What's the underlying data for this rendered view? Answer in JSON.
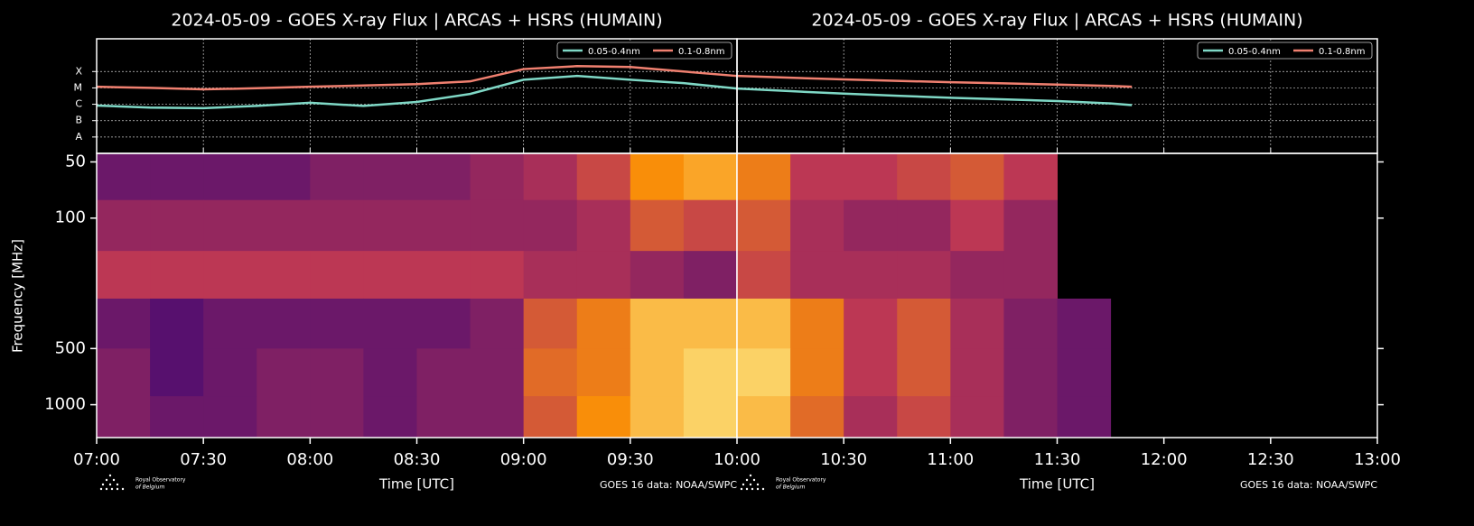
{
  "chart_data": [
    {
      "type": "heatmap",
      "title": "2024-05-09 - GOES X-ray Flux | ARCAS + HSRS (HUMAIN)",
      "xlabel": "Time [UTC]",
      "ylabel": "Frequency [MHz]",
      "credit": "GOES 16 data: NOAA/SWPC",
      "logo_text": [
        "Royal Observatory",
        "of Belgium"
      ],
      "xlim": [
        420,
        600
      ],
      "xticks": [
        {
          "value": 420,
          "label": "07:00"
        },
        {
          "value": 450,
          "label": "07:30"
        },
        {
          "value": 480,
          "label": "08:00"
        },
        {
          "value": 510,
          "label": "08:30"
        },
        {
          "value": 540,
          "label": "09:00"
        },
        {
          "value": 570,
          "label": "09:30"
        }
      ],
      "log_y": true,
      "ylim": [
        1500,
        45
      ],
      "yticks": [
        50,
        100,
        500,
        1000
      ],
      "bins": [
        420,
        435,
        450,
        465,
        480,
        495,
        510,
        525,
        540,
        555,
        570,
        585,
        600
      ],
      "bands": [
        45,
        80,
        150,
        270,
        500,
        900,
        1500
      ],
      "z": [
        [
          0.3,
          0.3,
          0.3,
          0.3,
          0.35,
          0.35,
          0.35,
          0.4,
          0.45,
          0.55,
          0.75,
          0.8
        ],
        [
          0.4,
          0.4,
          0.4,
          0.4,
          0.4,
          0.4,
          0.4,
          0.4,
          0.4,
          0.45,
          0.6,
          0.55
        ],
        [
          0.5,
          0.5,
          0.5,
          0.5,
          0.5,
          0.5,
          0.5,
          0.5,
          0.45,
          0.45,
          0.4,
          0.35
        ],
        [
          0.3,
          0.25,
          0.3,
          0.3,
          0.3,
          0.3,
          0.3,
          0.35,
          0.6,
          0.7,
          0.85,
          0.85
        ],
        [
          0.35,
          0.25,
          0.3,
          0.35,
          0.35,
          0.3,
          0.35,
          0.35,
          0.65,
          0.7,
          0.85,
          0.9
        ],
        [
          0.35,
          0.3,
          0.3,
          0.35,
          0.35,
          0.3,
          0.35,
          0.35,
          0.6,
          0.75,
          0.85,
          0.9
        ]
      ],
      "flux": {
        "type": "line",
        "grid": true,
        "legend": "upper right",
        "ylim": [
          -9,
          -2
        ],
        "yticks": [
          {
            "value": -8,
            "label": "A"
          },
          {
            "value": -7,
            "label": "B"
          },
          {
            "value": -6,
            "label": "C"
          },
          {
            "value": -5,
            "label": "M"
          },
          {
            "value": -4,
            "label": "X"
          }
        ],
        "x": [
          420,
          435,
          450,
          465,
          480,
          495,
          510,
          525,
          540,
          555,
          570,
          585,
          600
        ],
        "series": [
          {
            "name": "0.05-0.4nm",
            "color": "#7fd8c6",
            "values": [
              -6.08,
              -6.2,
              -6.24,
              -6.1,
              -5.91,
              -6.1,
              -5.86,
              -5.37,
              -4.5,
              -4.27,
              -4.5,
              -4.71,
              -5.04
            ]
          },
          {
            "name": "0.1-0.8nm",
            "color": "#f08070",
            "values": [
              -4.93,
              -5.0,
              -5.09,
              -5.02,
              -4.93,
              -4.85,
              -4.77,
              -4.6,
              -3.85,
              -3.67,
              -3.72,
              -4.0,
              -4.27
            ]
          }
        ]
      }
    },
    {
      "type": "heatmap",
      "title": "2024-05-09 - GOES X-ray Flux | ARCAS + HSRS (HUMAIN)",
      "xlabel": "Time [UTC]",
      "credit": "GOES 16 data: NOAA/SWPC",
      "logo_text": [
        "Royal Observatory",
        "of Belgium"
      ],
      "xlim": [
        600,
        780
      ],
      "xticks": [
        {
          "value": 600,
          "label": "10:00"
        },
        {
          "value": 630,
          "label": "10:30"
        },
        {
          "value": 660,
          "label": "11:00"
        },
        {
          "value": 690,
          "label": "11:30"
        },
        {
          "value": 720,
          "label": "12:00"
        },
        {
          "value": 750,
          "label": "12:30"
        },
        {
          "value": 780,
          "label": "13:00"
        }
      ],
      "log_y": true,
      "ylim": [
        1500,
        45
      ],
      "yticks": [
        50,
        100,
        500,
        1000
      ],
      "bins": [
        600,
        615,
        630,
        645,
        660,
        675,
        690,
        705,
        720,
        735,
        750,
        765,
        780
      ],
      "bands": [
        45,
        80,
        150,
        270,
        500,
        900,
        1500
      ],
      "z": [
        [
          0.7,
          0.5,
          0.5,
          0.55,
          0.6,
          0.5,
          null,
          null,
          null,
          null,
          null,
          null
        ],
        [
          0.6,
          0.45,
          0.4,
          0.4,
          0.5,
          0.4,
          null,
          null,
          null,
          null,
          null,
          null
        ],
        [
          0.55,
          0.45,
          0.45,
          0.45,
          0.4,
          0.4,
          null,
          null,
          null,
          null,
          null,
          null
        ],
        [
          0.85,
          0.7,
          0.5,
          0.6,
          0.45,
          0.35,
          0.3,
          null,
          null,
          null,
          null,
          null
        ],
        [
          0.9,
          0.7,
          0.5,
          0.6,
          0.45,
          0.35,
          0.3,
          null,
          null,
          null,
          null,
          null
        ],
        [
          0.85,
          0.65,
          0.45,
          0.55,
          0.45,
          0.35,
          0.3,
          null,
          null,
          null,
          null,
          null
        ]
      ],
      "flux": {
        "type": "line",
        "grid": true,
        "legend": "upper right",
        "ylim": [
          -9,
          -2
        ],
        "yticks": [
          {
            "value": -8,
            "label": "A"
          },
          {
            "value": -7,
            "label": "B"
          },
          {
            "value": -6,
            "label": "C"
          },
          {
            "value": -5,
            "label": "M"
          },
          {
            "value": -4,
            "label": "X"
          }
        ],
        "x": [
          600,
          615,
          630,
          645,
          660,
          675,
          690,
          705,
          711
        ],
        "series": [
          {
            "name": "0.05-0.4nm",
            "color": "#7fd8c6",
            "values": [
              -5.04,
              -5.2,
              -5.35,
              -5.48,
              -5.6,
              -5.7,
              -5.8,
              -5.95,
              -6.05
            ]
          },
          {
            "name": "0.1-0.8nm",
            "color": "#f08070",
            "values": [
              -4.27,
              -4.38,
              -4.48,
              -4.57,
              -4.65,
              -4.72,
              -4.8,
              -4.88,
              -4.93
            ]
          }
        ]
      }
    }
  ]
}
